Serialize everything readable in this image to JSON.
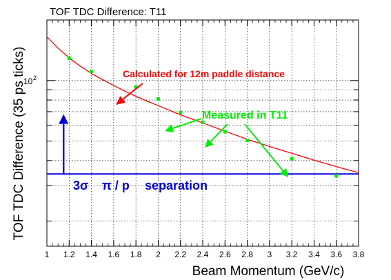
{
  "chart_data": {
    "type": "scatter",
    "title": "TOF TDC Difference: T11",
    "xlabel": "Beam Momentum (GeV/c)",
    "ylabel": "TOF TDC Difference (35 ps ticks)",
    "xlim": [
      1.0,
      3.8
    ],
    "ylim": [
      15,
      200
    ],
    "yscale": "log",
    "x_ticks": [
      1,
      1.2,
      1.4,
      1.6,
      1.8,
      2,
      2.2,
      2.4,
      2.6,
      2.8,
      3,
      3.2,
      3.4,
      3.6,
      3.8
    ],
    "x_tick_labels": [
      "1",
      "1.2",
      "1.4",
      "1.6",
      "1.8",
      "2",
      "2.2",
      "2.4",
      "2.6",
      "2.8",
      "3",
      "3.2",
      "3.4",
      "3.6",
      "3.8"
    ],
    "y_tick_labels": [
      {
        "value": 100,
        "label": "10",
        "exponent": "2"
      }
    ],
    "grid": true,
    "series": [
      {
        "name": "Measured in T11",
        "type": "scatter",
        "color": "#00ee00",
        "x": [
          1.2,
          1.4,
          1.8,
          2.0,
          2.2,
          2.4,
          2.6,
          2.8,
          3.2,
          3.6
        ],
        "y": [
          129,
          111,
          93,
          81,
          69.5,
          62,
          55.7,
          50.4,
          40.9,
          33.6
        ]
      },
      {
        "name": "Calculated for 12m paddle distance",
        "type": "line",
        "color": "#ff0000",
        "x": [
          1.0,
          1.1,
          1.2,
          1.3,
          1.4,
          1.5,
          1.6,
          1.7,
          1.8,
          1.9,
          2.0,
          2.2,
          2.4,
          2.6,
          2.8,
          3.0,
          3.2,
          3.4,
          3.6,
          3.8
        ],
        "y": [
          165,
          145,
          129.5,
          118,
          108.5,
          101,
          94.5,
          88.5,
          83.5,
          79,
          75,
          67.5,
          61.5,
          56,
          51,
          47,
          43.5,
          40.2,
          37.3,
          34.8
        ]
      }
    ],
    "separation_level": 34.3,
    "separation_arrow": {
      "x": 1.15,
      "y_from": 34.3,
      "y_to": 68
    },
    "annotations": {
      "calculated": "Calculated for 12m paddle distance",
      "measured": "Measured in T11",
      "sep_sigma": "3σ",
      "sep_ratio": "π / p",
      "sep_word": "separation"
    },
    "colors": {
      "calculated": "#ff0000",
      "measured": "#00ee00",
      "separation": "#0000dd"
    }
  }
}
